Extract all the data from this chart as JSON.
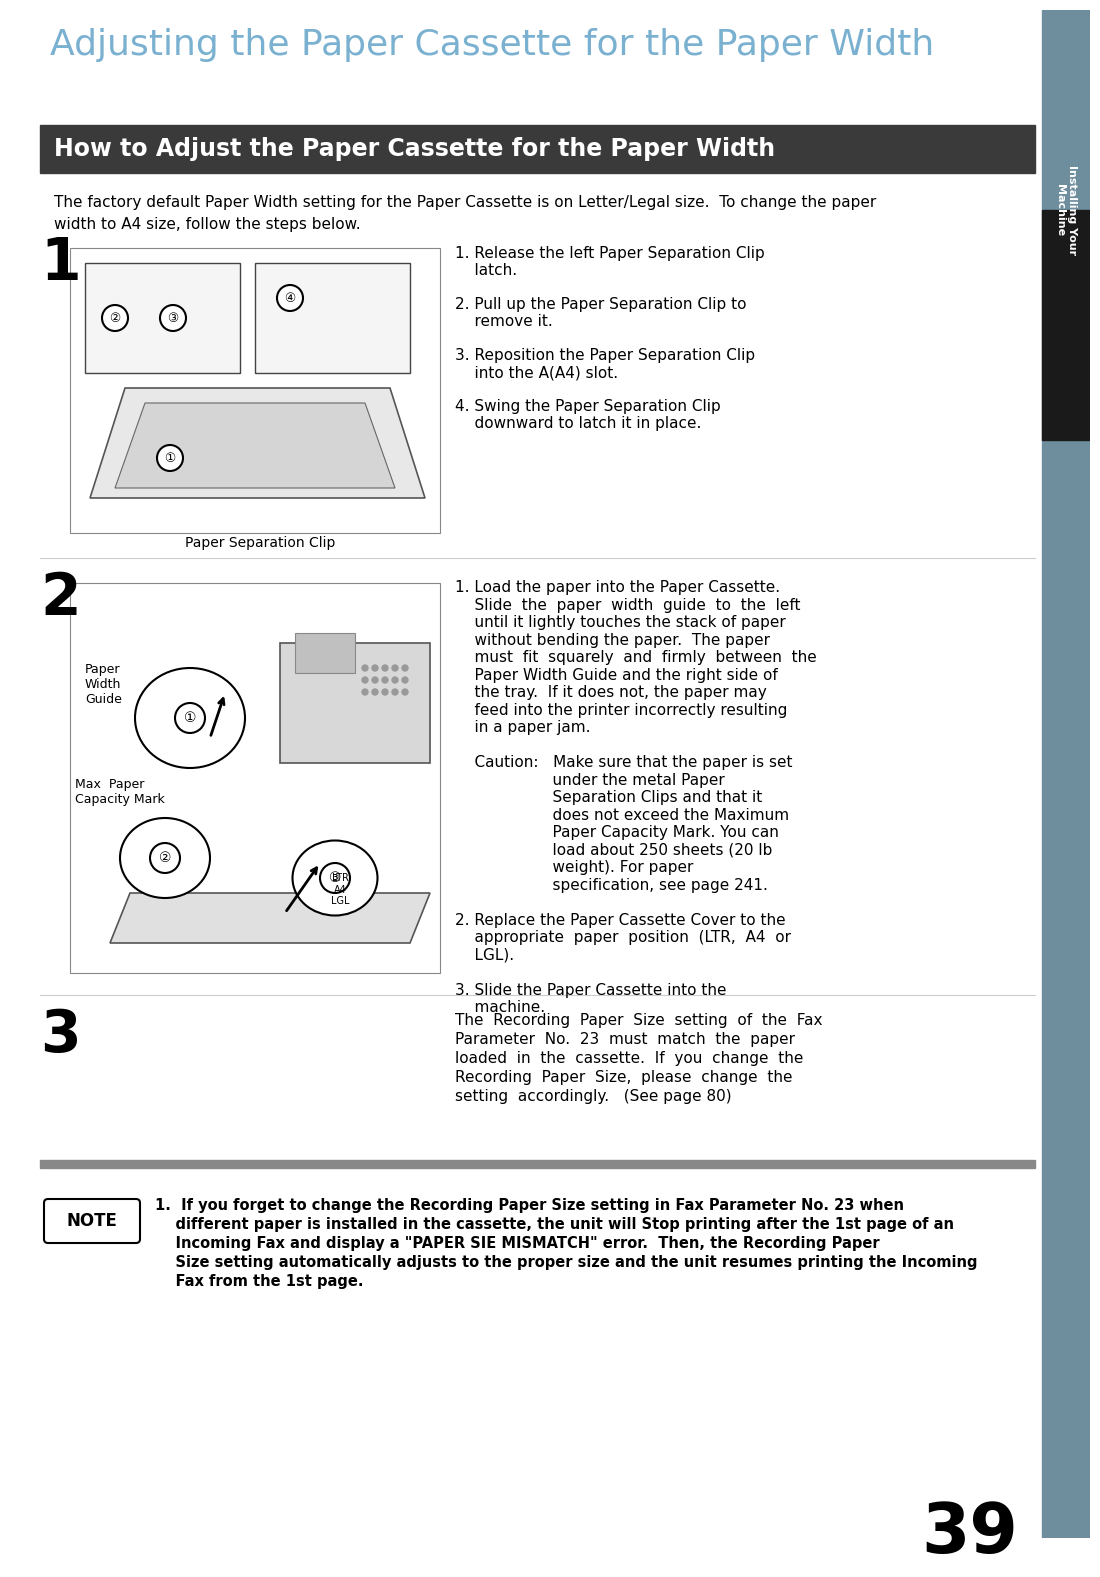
{
  "page_bg": "#ffffff",
  "sidebar_color": "#6e8e9e",
  "title_color": "#7ab0d0",
  "title_text": "Adjusting the Paper Cassette for the Paper Width",
  "section_bg": "#3a3a3a",
  "section_text": "How to Adjust the Paper Cassette for the Paper Width",
  "section_text_color": "#ffffff",
  "intro_line1": "The factory default Paper Width setting for the Paper Cassette is on Letter/Legal size.  To change the paper",
  "intro_line2": "width to A4 size, follow the steps below.",
  "step1_label": "1",
  "step1_caption": "Paper Separation Clip",
  "step1_inst": [
    "1. Release the left Paper Separation Clip",
    "    latch.",
    "",
    "2. Pull up the Paper Separation Clip to",
    "    remove it.",
    "",
    "3. Reposition the Paper Separation Clip",
    "    into the A(A4) slot.",
    "",
    "4. Swing the Paper Separation Clip",
    "    downward to latch it in place."
  ],
  "step2_label": "2",
  "step2_inst": [
    "1. Load the paper into the Paper Cassette.",
    "    Slide  the  paper  width  guide  to  the  left",
    "    until it lightly touches the stack of paper",
    "    without bending the paper.  The paper",
    "    must  fit  squarely  and  firmly  between  the",
    "    Paper Width Guide and the right side of",
    "    the tray.  If it does not, the paper may",
    "    feed into the printer incorrectly resulting",
    "    in a paper jam.",
    "",
    "    Caution:   Make sure that the paper is set",
    "                    under the metal Paper",
    "                    Separation Clips and that it",
    "                    does not exceed the Maximum",
    "                    Paper Capacity Mark. You can",
    "                    load about 250 sheets (20 lb",
    "                    weight). For paper",
    "                    specification, see page 241.",
    "",
    "2. Replace the Paper Cassette Cover to the",
    "    appropriate  paper  position  (LTR,  A4  or",
    "    LGL).",
    "",
    "3. Slide the Paper Cassette into the",
    "    machine."
  ],
  "step3_label": "3",
  "step3_inst": [
    "The  Recording  Paper  Size  setting  of  the  Fax",
    "Parameter  No.  23  must  match  the  paper",
    "loaded  in  the  cassette.  If  you  change  the",
    "Recording  Paper  Size,  please  change  the",
    "setting  accordingly.   (See page 80)"
  ],
  "note_label": "NOTE",
  "note_lines": [
    "1.  If you forget to change the Recording Paper Size setting in Fax Parameter No. 23 when",
    "    different paper is installed in the cassette, the unit will Stop printing after the 1st page of an",
    "    Incoming Fax and display a \"PAPER SIE MISMATCH\" error.  Then, the Recording Paper",
    "    Size setting automatically adjusts to the proper size and the unit resumes printing the Incoming",
    "    Fax from the 1st page."
  ],
  "page_number": "39",
  "sidebar_label": "Installing Your\nMachine"
}
